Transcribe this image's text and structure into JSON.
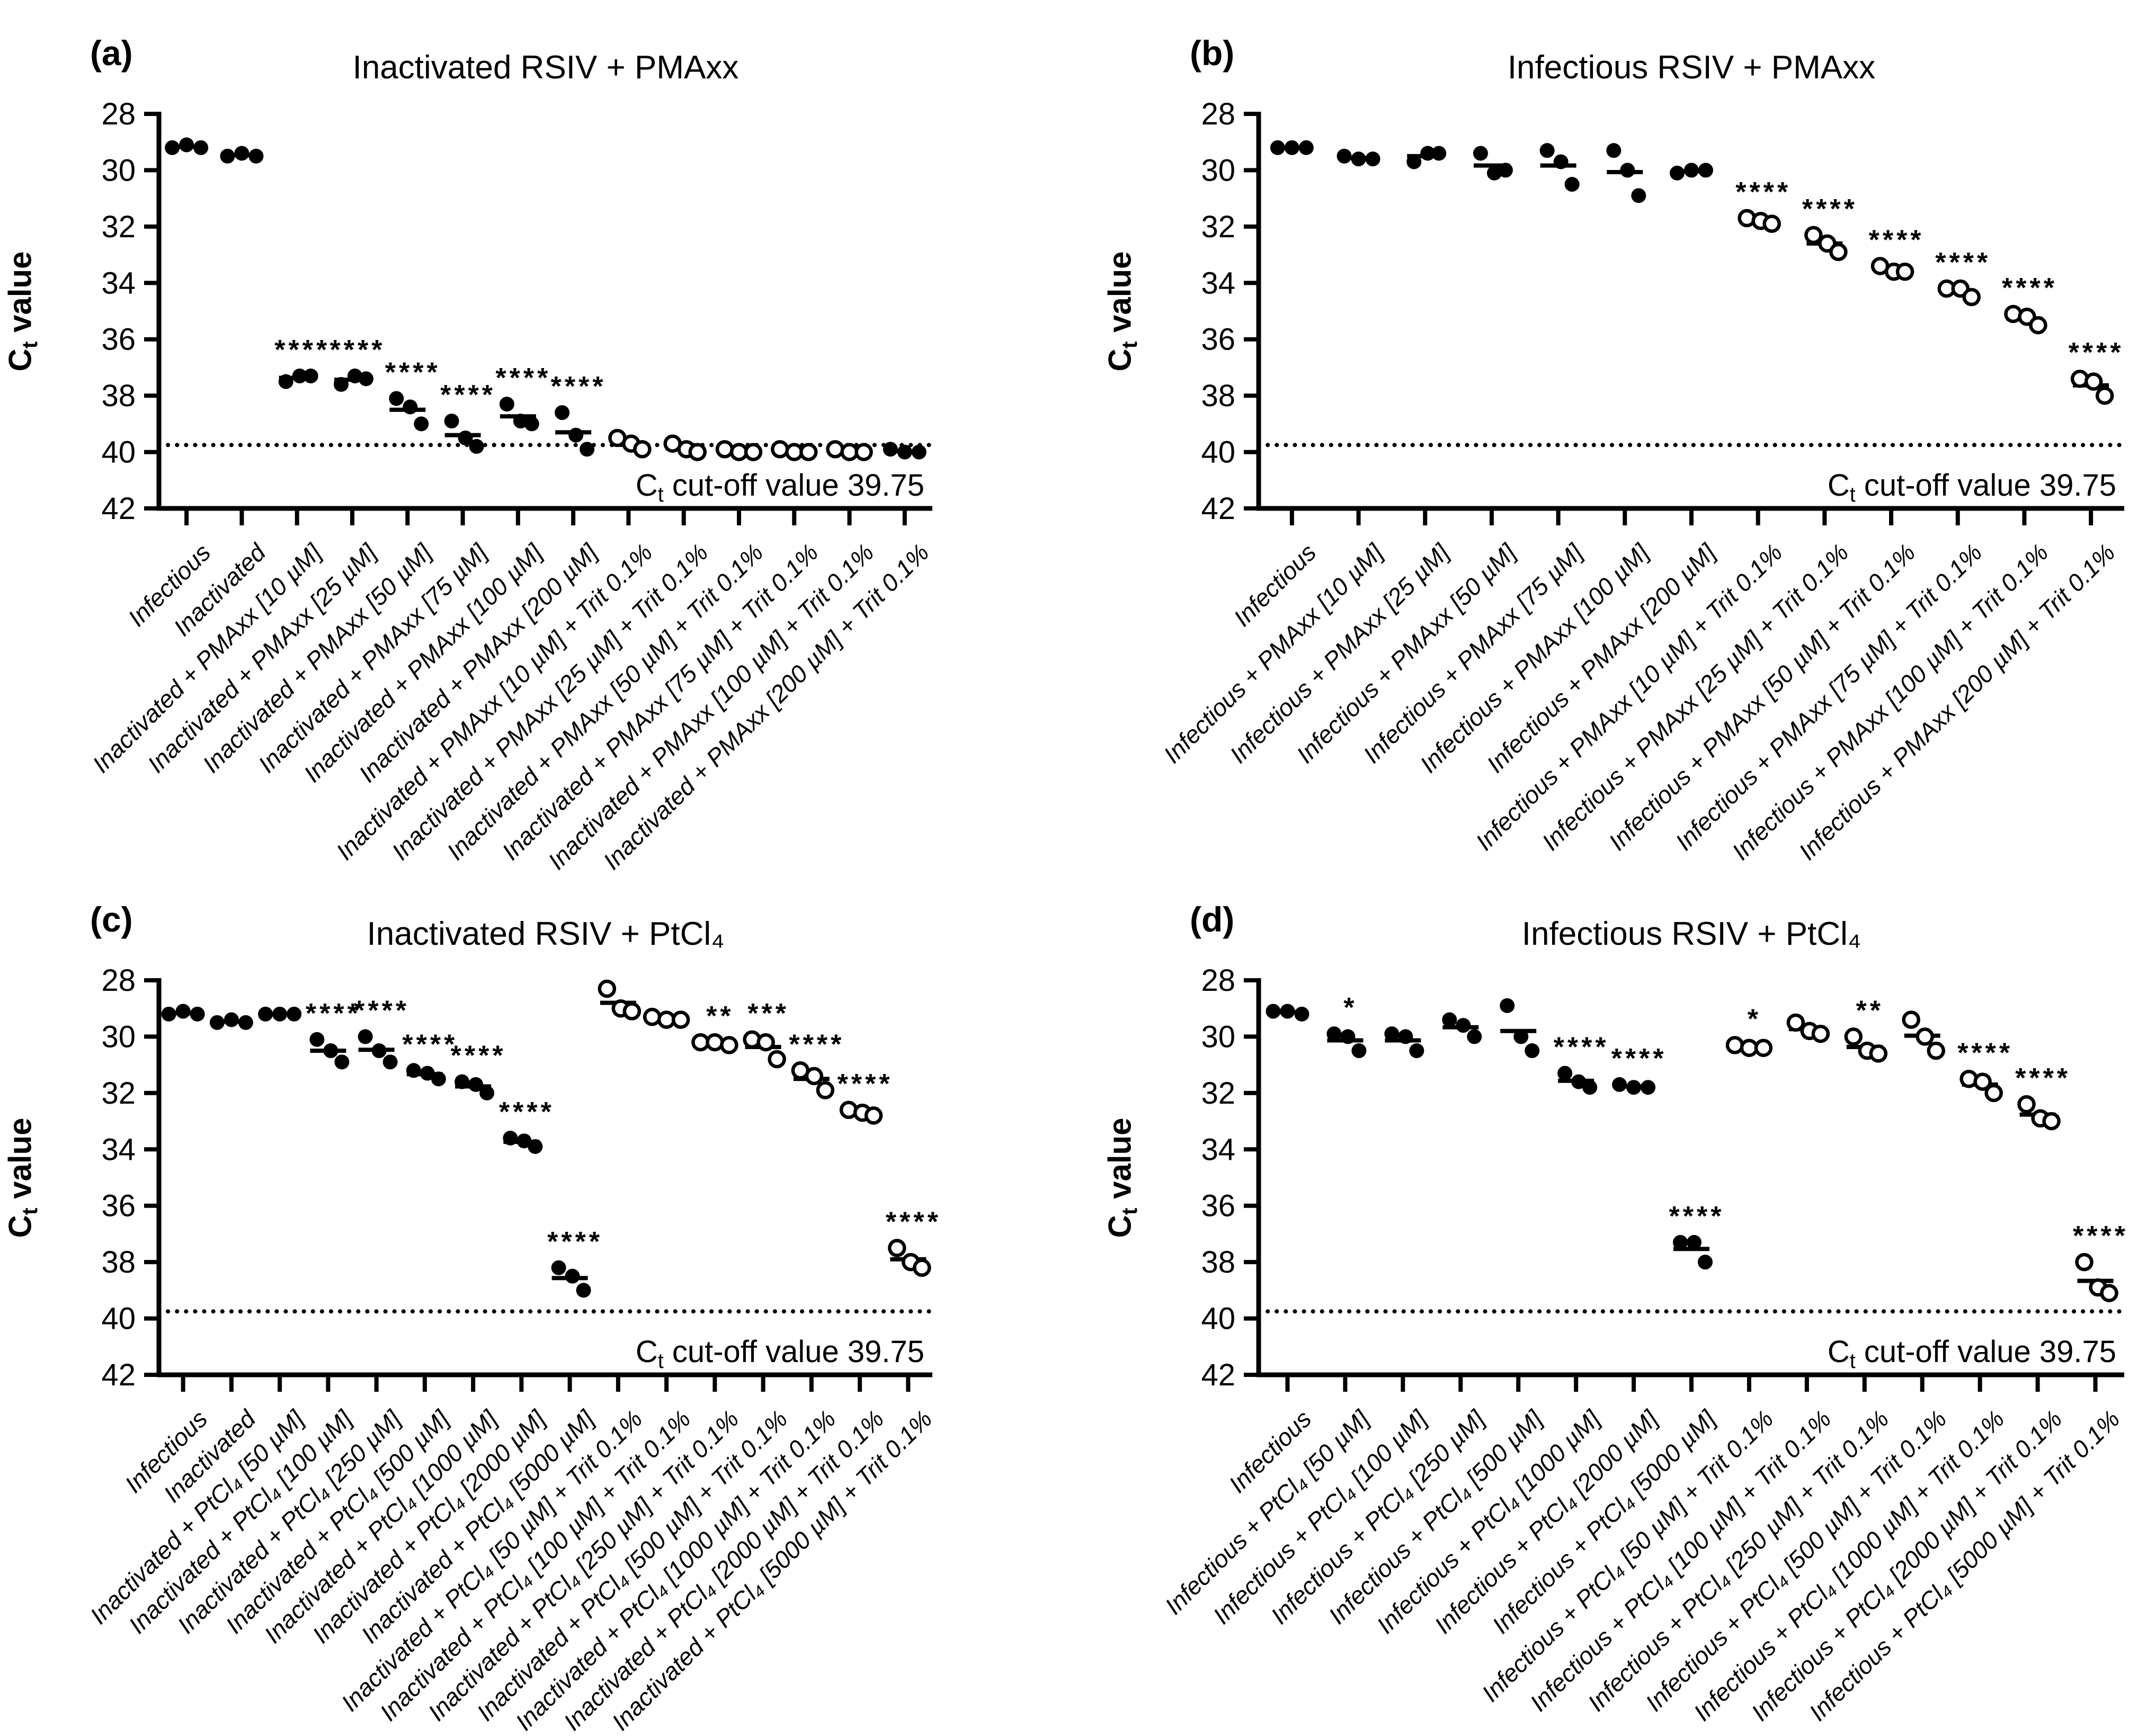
{
  "figure": {
    "y_axis_label": "Ct value",
    "cutoff_label": "Ct cut-off value 39.75",
    "cutoff_value": 39.75,
    "y_ticks": [
      28,
      30,
      32,
      34,
      36,
      38,
      40,
      42
    ],
    "ylim": [
      28,
      42
    ],
    "marker_colors": {
      "filled": "#000000",
      "open_fill": "#ffffff",
      "stroke": "#000000"
    }
  },
  "chart_data": [
    {
      "type": "scatter",
      "panel_label": "(a)",
      "title": "Inactivated RSIV + PMAxx",
      "ylabel": "Ct value",
      "ylim": [
        28,
        42
      ],
      "y_inverted": true,
      "cutoff": 39.75,
      "grid": false,
      "groups": [
        {
          "label": "Infectious",
          "marker": "filled",
          "values": [
            29.2,
            29.1,
            29.2
          ],
          "sig": ""
        },
        {
          "label": "Inactivated",
          "marker": "filled",
          "values": [
            29.5,
            29.4,
            29.5
          ],
          "sig": ""
        },
        {
          "label": "Inactivated + PMAxx [10 µM]",
          "marker": "filled",
          "values": [
            37.5,
            37.3,
            37.3
          ],
          "sig": "****"
        },
        {
          "label": "Inactivated + PMAxx [25 µM]",
          "marker": "filled",
          "values": [
            37.6,
            37.3,
            37.4
          ],
          "sig": "****"
        },
        {
          "label": "Inactivated + PMAxx [50 µM]",
          "marker": "filled",
          "values": [
            38.1,
            38.4,
            39.0
          ],
          "sig": "****"
        },
        {
          "label": "Inactivated + PMAxx [75 µM]",
          "marker": "filled",
          "values": [
            38.9,
            39.5,
            39.8
          ],
          "sig": "****"
        },
        {
          "label": "Inactivated + PMAxx [100 µM]",
          "marker": "filled",
          "values": [
            38.3,
            38.9,
            39.0
          ],
          "sig": "****"
        },
        {
          "label": "Inactivated + PMAxx [200 µM]",
          "marker": "filled",
          "values": [
            38.6,
            39.4,
            39.9
          ],
          "sig": "****"
        },
        {
          "label": "Inactivated + PMAxx [10 µM] + Trit 0.1%",
          "marker": "open",
          "values": [
            39.5,
            39.7,
            39.9
          ],
          "sig": ""
        },
        {
          "label": "Inactivated + PMAxx [25 µM] + Trit 0.1%",
          "marker": "open",
          "values": [
            39.7,
            39.9,
            40.0
          ],
          "sig": ""
        },
        {
          "label": "Inactivated + PMAxx [50 µM] + Trit 0.1%",
          "marker": "open",
          "values": [
            39.9,
            40.0,
            40.0
          ],
          "sig": ""
        },
        {
          "label": "Inactivated + PMAxx [75 µM] + Trit 0.1%",
          "marker": "open",
          "values": [
            39.9,
            40.0,
            40.0
          ],
          "sig": ""
        },
        {
          "label": "Inactivated + PMAxx [100 µM] + Trit 0.1%",
          "marker": "open",
          "values": [
            39.9,
            40.0,
            40.0
          ],
          "sig": ""
        },
        {
          "label": "Inactivated + PMAxx [200 µM] + Trit 0.1%",
          "marker": "filled",
          "values": [
            39.9,
            40.0,
            40.0
          ],
          "sig": ""
        }
      ]
    },
    {
      "type": "scatter",
      "panel_label": "(b)",
      "title": "Infectious RSIV + PMAxx",
      "ylabel": "Ct value",
      "ylim": [
        28,
        42
      ],
      "y_inverted": true,
      "cutoff": 39.75,
      "grid": false,
      "groups": [
        {
          "label": "Infectious",
          "marker": "filled",
          "values": [
            29.2,
            29.2,
            29.2
          ],
          "sig": ""
        },
        {
          "label": "Infectious + PMAxx [10 µM]",
          "marker": "filled",
          "values": [
            29.5,
            29.6,
            29.6
          ],
          "sig": ""
        },
        {
          "label": "Infectious + PMAxx [25 µM]",
          "marker": "filled",
          "values": [
            29.7,
            29.4,
            29.4
          ],
          "sig": ""
        },
        {
          "label": "Infectious + PMAxx [50 µM]",
          "marker": "filled",
          "values": [
            29.4,
            30.1,
            30.0
          ],
          "sig": ""
        },
        {
          "label": "Infectious + PMAxx [75 µM]",
          "marker": "filled",
          "values": [
            29.3,
            29.7,
            30.5
          ],
          "sig": ""
        },
        {
          "label": "Infectious + PMAxx [100 µM]",
          "marker": "filled",
          "values": [
            29.3,
            30.0,
            30.9
          ],
          "sig": ""
        },
        {
          "label": "Infectious + PMAxx [200 µM]",
          "marker": "filled",
          "values": [
            30.1,
            30.0,
            30.0
          ],
          "sig": ""
        },
        {
          "label": "Infectious + PMAxx [10 µM] + Trit 0.1%",
          "marker": "open",
          "values": [
            31.7,
            31.8,
            31.9
          ],
          "sig": "****"
        },
        {
          "label": "Infectious + PMAxx [25 µM] + Trit 0.1%",
          "marker": "open",
          "values": [
            32.3,
            32.6,
            32.9
          ],
          "sig": "****"
        },
        {
          "label": "Infectious + PMAxx [50 µM] + Trit 0.1%",
          "marker": "open",
          "values": [
            33.4,
            33.6,
            33.6
          ],
          "sig": "****"
        },
        {
          "label": "Infectious + PMAxx [75 µM] + Trit 0.1%",
          "marker": "open",
          "values": [
            34.2,
            34.2,
            34.5
          ],
          "sig": "****"
        },
        {
          "label": "Infectious + PMAxx [100 µM] + Trit 0.1%",
          "marker": "open",
          "values": [
            35.1,
            35.2,
            35.5
          ],
          "sig": "****"
        },
        {
          "label": "Infectious + PMAxx [200 µM] + Trit 0.1%",
          "marker": "open",
          "values": [
            37.4,
            37.5,
            38.0
          ],
          "sig": "****"
        }
      ]
    },
    {
      "type": "scatter",
      "panel_label": "(c)",
      "title": "Inactivated RSIV + PtCl₄",
      "ylabel": "Ct value",
      "ylim": [
        28,
        42
      ],
      "y_inverted": true,
      "cutoff": 39.75,
      "grid": false,
      "groups": [
        {
          "label": "Infectious",
          "marker": "filled",
          "values": [
            29.2,
            29.1,
            29.2
          ],
          "sig": ""
        },
        {
          "label": "Inactivated",
          "marker": "filled",
          "values": [
            29.5,
            29.4,
            29.5
          ],
          "sig": ""
        },
        {
          "label": "Inactivated + PtCl₄ [50 µM]",
          "marker": "filled",
          "values": [
            29.2,
            29.2,
            29.2
          ],
          "sig": ""
        },
        {
          "label": "Inactivated + PtCl₄ [100 µM]",
          "marker": "filled",
          "values": [
            30.1,
            30.5,
            30.9
          ],
          "sig": "****"
        },
        {
          "label": "Inactivated + PtCl₄ [250 µM]",
          "marker": "filled",
          "values": [
            30.0,
            30.5,
            30.9
          ],
          "sig": "****"
        },
        {
          "label": "Inactivated + PtCl₄ [500 µM]",
          "marker": "filled",
          "values": [
            31.2,
            31.3,
            31.5
          ],
          "sig": "****"
        },
        {
          "label": "Inactivated + PtCl₄ [1000 µM]",
          "marker": "filled",
          "values": [
            31.6,
            31.7,
            32.0
          ],
          "sig": "****"
        },
        {
          "label": "Inactivated + PtCl₄ [2000 µM]",
          "marker": "filled",
          "values": [
            33.6,
            33.7,
            33.9
          ],
          "sig": "****"
        },
        {
          "label": "Inactivated + PtCl₄ [5000 µM]",
          "marker": "filled",
          "values": [
            38.2,
            38.5,
            39.0
          ],
          "sig": "****"
        },
        {
          "label": "Inactivated + PtCl₄ [50 µM] + Trit 0.1%",
          "marker": "open",
          "values": [
            28.3,
            29.0,
            29.1
          ],
          "sig": ""
        },
        {
          "label": "Inactivated + PtCl₄ [100 µM] + Trit 0.1%",
          "marker": "open",
          "values": [
            29.3,
            29.4,
            29.4
          ],
          "sig": ""
        },
        {
          "label": "Inactivated + PtCl₄ [250 µM] + Trit 0.1%",
          "marker": "open",
          "values": [
            30.2,
            30.2,
            30.3
          ],
          "sig": "**"
        },
        {
          "label": "Inactivated + PtCl₄ [500 µM] + Trit 0.1%",
          "marker": "open",
          "values": [
            30.1,
            30.2,
            30.8
          ],
          "sig": "***"
        },
        {
          "label": "Inactivated + PtCl₄ [1000 µM] + Trit 0.1%",
          "marker": "open",
          "values": [
            31.2,
            31.4,
            31.9
          ],
          "sig": "****"
        },
        {
          "label": "Inactivated + PtCl₄ [2000 µM] + Trit 0.1%",
          "marker": "open",
          "values": [
            32.6,
            32.7,
            32.8
          ],
          "sig": "****"
        },
        {
          "label": "Inactivated + PtCl₄ [5000 µM] + Trit 0.1%",
          "marker": "open",
          "values": [
            37.5,
            38.0,
            38.2
          ],
          "sig": "****"
        }
      ]
    },
    {
      "type": "scatter",
      "panel_label": "(d)",
      "title": "Infectious RSIV + PtCl₄",
      "ylabel": "Ct value",
      "ylim": [
        28,
        42
      ],
      "y_inverted": true,
      "cutoff": 39.75,
      "grid": false,
      "groups": [
        {
          "label": "Infectious",
          "marker": "filled",
          "values": [
            29.1,
            29.1,
            29.2
          ],
          "sig": ""
        },
        {
          "label": "Infectious + PtCl₄ [50 µM]",
          "marker": "filled",
          "values": [
            29.9,
            30.0,
            30.5
          ],
          "sig": "*"
        },
        {
          "label": "Infectious + PtCl₄ [100 µM]",
          "marker": "filled",
          "values": [
            29.9,
            30.0,
            30.5
          ],
          "sig": ""
        },
        {
          "label": "Infectious + PtCl₄ [250 µM]",
          "marker": "filled",
          "values": [
            29.4,
            29.6,
            30.0
          ],
          "sig": ""
        },
        {
          "label": "Infectious + PtCl₄ [500 µM]",
          "marker": "filled",
          "values": [
            28.9,
            30.0,
            30.5
          ],
          "sig": ""
        },
        {
          "label": "Infectious + PtCl₄ [1000 µM]",
          "marker": "filled",
          "values": [
            31.3,
            31.6,
            31.8
          ],
          "sig": "****"
        },
        {
          "label": "Infectious + PtCl₄ [2000 µM]",
          "marker": "filled",
          "values": [
            31.7,
            31.8,
            31.8
          ],
          "sig": "****"
        },
        {
          "label": "Infectious + PtCl₄ [5000 µM]",
          "marker": "filled",
          "values": [
            37.3,
            37.3,
            38.0
          ],
          "sig": "****"
        },
        {
          "label": "Infectious + PtCl₄ [50 µM] + Trit 0.1%",
          "marker": "open",
          "values": [
            30.3,
            30.4,
            30.4
          ],
          "sig": "*"
        },
        {
          "label": "Infectious + PtCl₄ [100 µM] + Trit 0.1%",
          "marker": "open",
          "values": [
            29.5,
            29.8,
            29.9
          ],
          "sig": ""
        },
        {
          "label": "Infectious + PtCl₄ [250 µM] + Trit 0.1%",
          "marker": "open",
          "values": [
            30.0,
            30.5,
            30.6
          ],
          "sig": "**"
        },
        {
          "label": "Infectious + PtCl₄ [500 µM] + Trit 0.1%",
          "marker": "open",
          "values": [
            29.4,
            30.0,
            30.5
          ],
          "sig": ""
        },
        {
          "label": "Infectious + PtCl₄ [1000 µM] + Trit 0.1%",
          "marker": "open",
          "values": [
            31.5,
            31.6,
            32.0
          ],
          "sig": "****"
        },
        {
          "label": "Infectious + PtCl₄ [2000 µM] + Trit 0.1%",
          "marker": "open",
          "values": [
            32.4,
            32.9,
            33.0
          ],
          "sig": "****"
        },
        {
          "label": "Infectious + PtCl₄ [5000 µM] + Trit 0.1%",
          "marker": "open",
          "values": [
            38.0,
            38.9,
            39.1
          ],
          "sig": "****"
        }
      ]
    }
  ]
}
